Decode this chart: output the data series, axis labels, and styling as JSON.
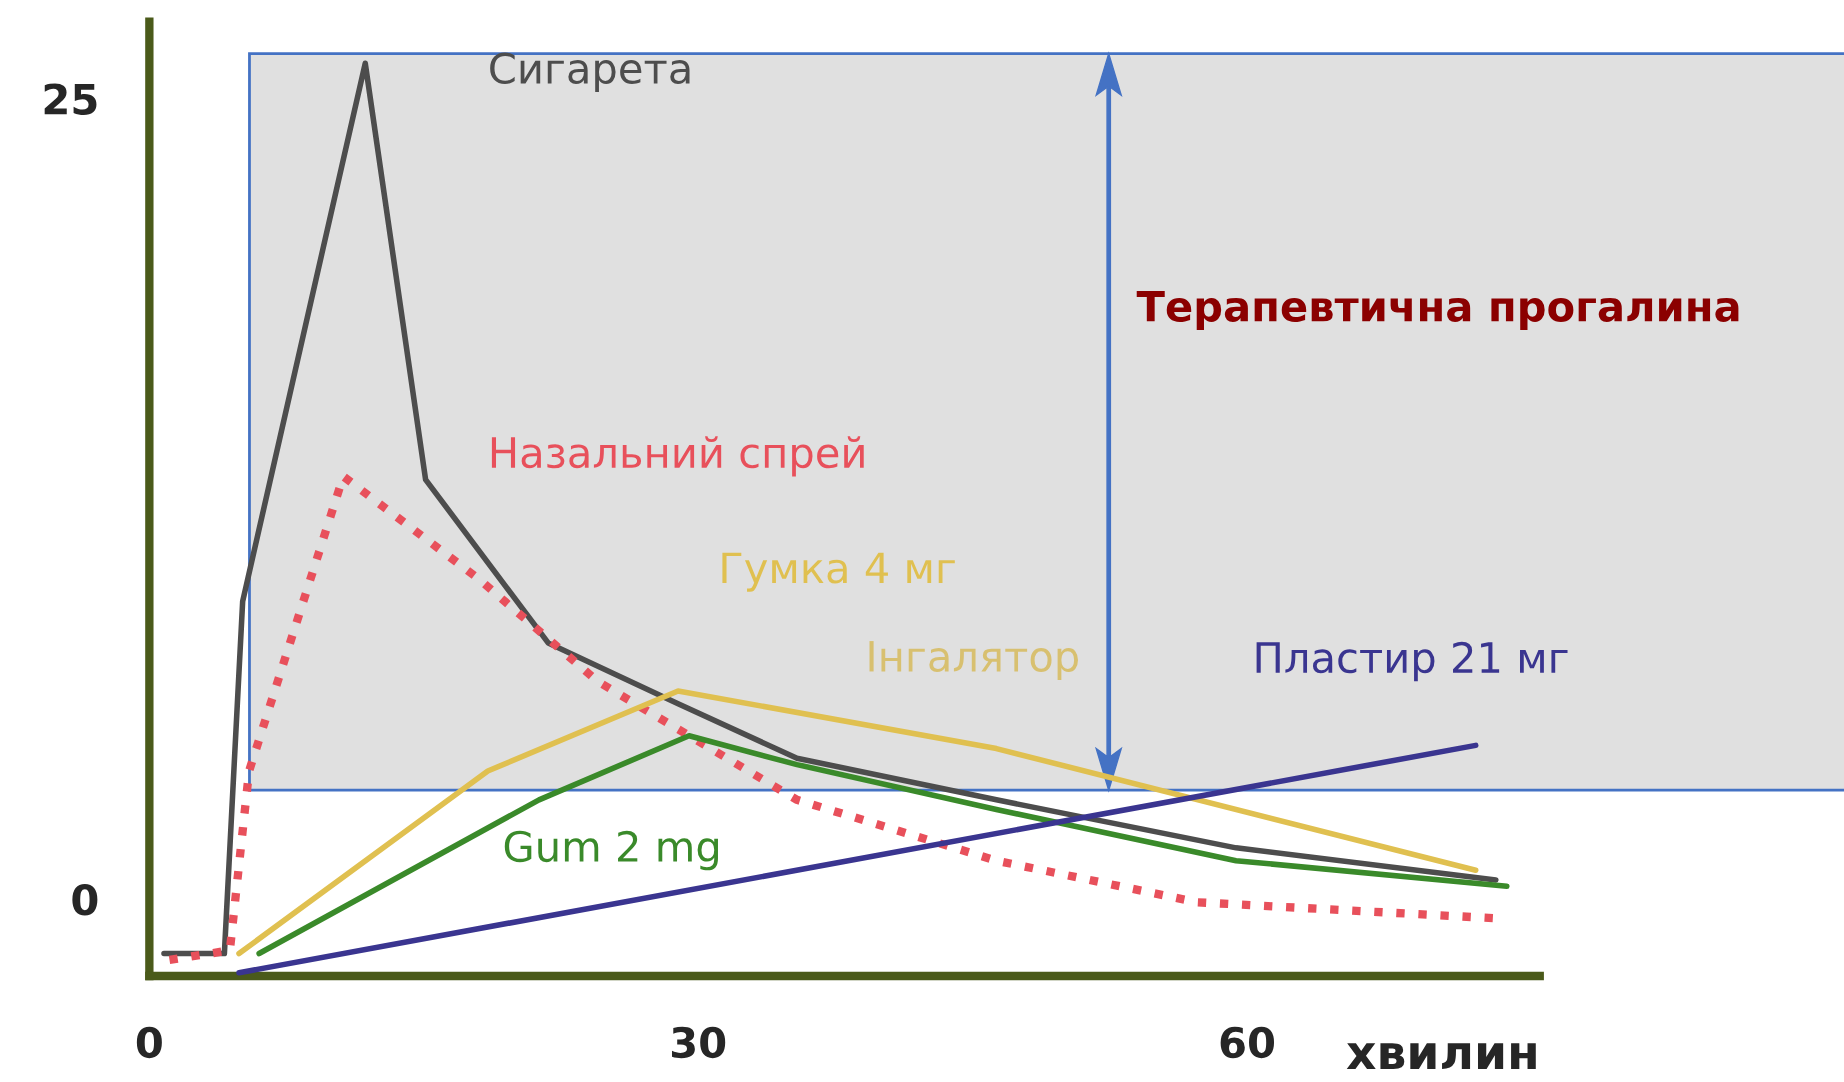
{
  "chart_data": {
    "type": "line",
    "xlabel": "хвилин",
    "xlim": [
      0,
      76
    ],
    "xticks": [
      0,
      30,
      60
    ],
    "ylim": [
      -2.4,
      27.4
    ],
    "yticks": [
      0,
      25
    ],
    "grid": false,
    "marker": "none",
    "bands": [
      {
        "axis": "y",
        "from": 3.4,
        "to": 26.4,
        "label": "Терапевтична прогалина",
        "color": "#e0e0e0"
      }
    ],
    "annotations": [
      "Інгалятор"
    ],
    "series": [
      {
        "name": "Сигарета",
        "color": "#4d4d4d",
        "line_style": "solid",
        "x": [
          0.8,
          4.1,
          5.1,
          11.8,
          15.1,
          21.8,
          28.9,
          35.4,
          46.3,
          59.4,
          73.6
        ],
        "values": [
          -1.7,
          -1.7,
          9.3,
          26.1,
          13.1,
          8.0,
          6.1,
          4.4,
          3.1,
          1.6,
          0.6
        ]
      },
      {
        "name": "Назальний спрей",
        "color": "#e8505b",
        "line_style": "dotted",
        "x": [
          1.1,
          4.4,
          5.45,
          10.6,
          18.0,
          24.5,
          35.4,
          46.3,
          57.3,
          73.6
        ],
        "values": [
          -1.9,
          -1.6,
          4.0,
          13.2,
          10.0,
          6.8,
          3.1,
          1.2,
          -0.1,
          -0.6
        ]
      },
      {
        "name": "Гумка 4 мг",
        "color": "#e0c050",
        "line_style": "solid",
        "x": [
          4.9,
          18.5,
          28.9,
          46.3,
          72.5
        ],
        "values": [
          -1.7,
          4.0,
          6.5,
          4.7,
          0.9
        ]
      },
      {
        "name": "Gum 2 mg",
        "color": "#3a8a2a",
        "line_style": "solid",
        "x": [
          6.0,
          21.3,
          29.5,
          35.4,
          46.3,
          59.4,
          74.2
        ],
        "values": [
          -1.7,
          3.1,
          5.1,
          4.2,
          2.8,
          1.2,
          0.4
        ]
      },
      {
        "name": "Пластир 21 мг",
        "color": "#3a3590",
        "line_style": "solid",
        "x": [
          4.9,
          72.5
        ],
        "values": [
          -2.3,
          4.8
        ]
      }
    ]
  }
}
